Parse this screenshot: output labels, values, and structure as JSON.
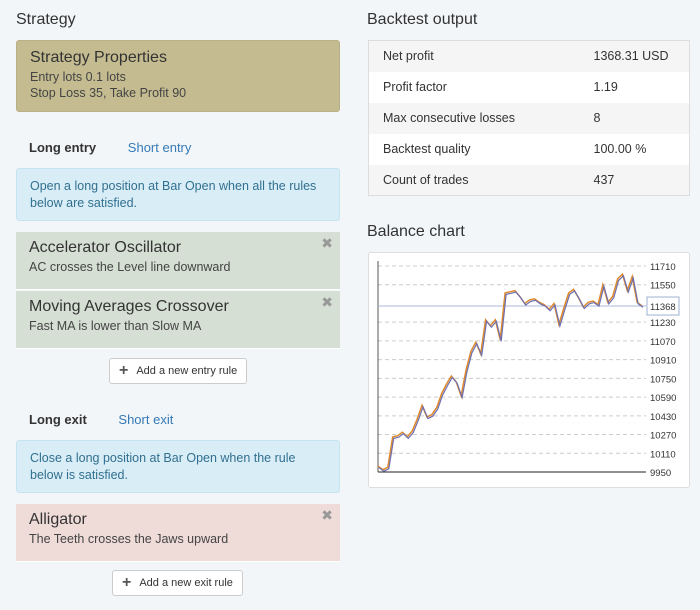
{
  "strategy": {
    "heading": "Strategy",
    "properties_title": "Strategy Properties",
    "entry_lots": "Entry lots 0.1 lots",
    "sl_tp": "Stop Loss 35, Take Profit 90"
  },
  "entry": {
    "tab_active": "Long entry",
    "tab_other": "Short entry",
    "info": "Open a long position at Bar Open when all the rules below are satisfied.",
    "rules": [
      {
        "title": "Accelerator Oscillator",
        "desc": "AC crosses the Level line downward"
      },
      {
        "title": "Moving Averages Crossover",
        "desc": "Fast MA is lower than Slow MA"
      }
    ],
    "add_label": "Add a new entry rule"
  },
  "exit": {
    "tab_active": "Long exit",
    "tab_other": "Short exit",
    "info": "Close a long position at Bar Open when the rule below is satisfied.",
    "rules": [
      {
        "title": "Alligator",
        "desc": "The Teeth crosses the Jaws upward"
      }
    ],
    "add_label": "Add a new exit rule"
  },
  "output": {
    "heading": "Backtest output",
    "rows": [
      [
        "Net profit",
        "1368.31 USD"
      ],
      [
        "Profit factor",
        "1.19"
      ],
      [
        "Max consecutive losses",
        "8"
      ],
      [
        "Backtest quality",
        "100.00 %"
      ],
      [
        "Count of trades",
        "437"
      ]
    ]
  },
  "balance": {
    "heading": "Balance chart"
  },
  "chart_data": {
    "type": "line",
    "yticks": [
      11710,
      11550,
      11230,
      11070,
      10910,
      10750,
      10590,
      10430,
      10270,
      10110,
      9950
    ],
    "ylim": [
      9950,
      11710
    ],
    "current_value": 11368,
    "grid": true,
    "colors": [
      "#6b6fb0",
      "#e08a2e"
    ],
    "values": [
      10000,
      9970,
      9990,
      10250,
      10260,
      10290,
      10250,
      10300,
      10400,
      10520,
      10420,
      10440,
      10500,
      10620,
      10700,
      10770,
      10720,
      10600,
      10820,
      10980,
      11060,
      10960,
      11250,
      11200,
      11250,
      11080,
      11480,
      11490,
      11500,
      11450,
      11390,
      11420,
      11430,
      11400,
      11380,
      11340,
      11390,
      11210,
      11350,
      11480,
      11510,
      11440,
      11360,
      11400,
      11410,
      11380,
      11550,
      11400,
      11450,
      11600,
      11640,
      11500,
      11620,
      11400,
      11370
    ]
  }
}
